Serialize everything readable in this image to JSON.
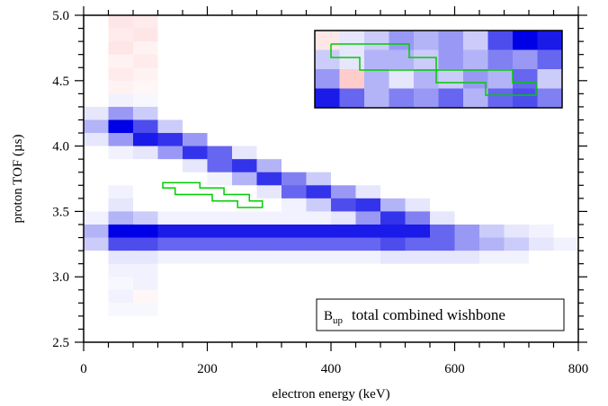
{
  "chart_data": {
    "type": "heatmap",
    "xlabel": "electron energy (keV)",
    "ylabel": "proton TOF (µs)",
    "xlim": [
      0,
      800
    ],
    "ylim": [
      2.5,
      5.0
    ],
    "xticks": [
      0,
      200,
      400,
      600,
      800
    ],
    "yticks": [
      2.5,
      {
        "value": 3,
        "label": "3.0"
      },
      3.5,
      {
        "value": 4,
        "label": "4.0"
      },
      4.5,
      {
        "value": 5,
        "label": "5.0"
      }
    ],
    "xminorticks": [
      40,
      80,
      120,
      160,
      240,
      280,
      320,
      360,
      440,
      480,
      520,
      560,
      640,
      680,
      720,
      760
    ],
    "yminorticks": [
      2.6,
      2.7,
      2.8,
      2.9,
      3.1,
      3.2,
      3.3,
      3.4,
      3.6,
      3.7,
      3.8,
      3.9,
      4.1,
      4.2,
      4.3,
      4.4,
      4.6,
      4.7,
      4.8,
      4.9
    ],
    "colors": {
      "positive": "#0000e6",
      "negative": "#ff0000"
    },
    "vlim": [
      -1,
      1
    ],
    "x_bins": [
      0,
      40,
      80,
      120,
      160,
      200,
      240,
      280,
      320,
      360,
      400,
      440,
      480,
      520,
      560,
      600,
      640,
      680,
      720,
      760,
      800
    ],
    "y_bins": [
      5.0,
      4.9,
      4.8,
      4.7,
      4.6,
      4.5,
      4.4,
      4.3,
      4.2,
      4.1,
      4.0,
      3.9,
      3.8,
      3.7,
      3.6,
      3.5,
      3.4,
      3.3,
      3.2,
      3.1,
      3.0,
      2.9,
      2.8,
      2.7,
      2.6,
      2.5
    ],
    "values": [
      [
        0,
        -0.1,
        -0.08,
        0,
        0,
        0,
        0,
        0,
        0,
        0,
        0,
        0,
        0,
        0,
        0,
        0,
        0,
        0,
        0,
        0
      ],
      [
        0,
        -0.08,
        -0.1,
        0,
        0,
        0,
        0,
        0,
        0,
        0,
        0,
        0,
        0,
        0,
        0,
        0,
        0,
        0,
        0,
        0
      ],
      [
        0,
        -0.1,
        -0.05,
        0,
        0,
        0,
        0,
        0,
        0,
        0,
        0,
        0,
        0,
        0,
        0,
        0,
        0,
        0,
        0,
        0
      ],
      [
        0,
        -0.05,
        -0.08,
        0,
        0,
        0,
        0,
        0,
        0,
        0,
        0,
        0,
        0,
        0,
        0,
        0,
        0,
        0,
        0,
        0
      ],
      [
        0,
        -0.08,
        -0.05,
        0,
        0,
        0,
        0,
        0,
        0,
        0,
        0,
        0,
        0,
        0,
        0,
        0,
        0,
        0,
        0,
        0
      ],
      [
        0,
        -0.05,
        -0.03,
        0,
        0,
        0,
        0,
        0,
        0,
        0,
        0,
        0,
        0,
        0,
        0,
        0,
        0,
        0,
        0,
        0
      ],
      [
        0,
        0.05,
        0.03,
        0,
        0,
        0,
        0,
        0,
        0,
        0,
        0,
        0,
        0,
        0,
        0,
        0,
        0,
        0,
        0,
        0
      ],
      [
        0.1,
        0.4,
        0.2,
        0,
        0,
        0,
        0,
        0,
        0,
        0,
        0,
        0,
        0,
        0,
        0,
        0,
        0,
        0,
        0,
        0
      ],
      [
        0.3,
        1.0,
        0.7,
        0.2,
        0,
        0,
        0,
        0,
        0,
        0,
        0,
        0,
        0,
        0,
        0,
        0,
        0,
        0,
        0,
        0
      ],
      [
        0.1,
        0.4,
        0.9,
        0.8,
        0.4,
        0,
        0,
        0,
        0,
        0,
        0,
        0,
        0,
        0,
        0,
        0,
        0,
        0,
        0,
        0
      ],
      [
        0,
        0.05,
        0.1,
        0.4,
        0.8,
        0.6,
        0.1,
        0,
        0,
        0,
        0,
        0,
        0,
        0,
        0,
        0,
        0,
        0,
        0,
        0
      ],
      [
        0,
        0,
        0,
        0,
        0.1,
        0.6,
        0.8,
        0.3,
        0,
        0,
        0,
        0,
        0,
        0,
        0,
        0,
        0,
        0,
        0,
        0
      ],
      [
        0,
        0,
        0,
        0,
        0,
        0.05,
        0.3,
        0.8,
        0.5,
        0.2,
        0,
        0,
        0,
        0,
        0,
        0,
        0,
        0,
        0,
        0
      ],
      [
        0,
        0.05,
        0,
        0,
        0,
        0,
        0,
        0.1,
        0.6,
        0.8,
        0.4,
        0.1,
        0,
        0,
        0,
        0,
        0,
        0,
        0,
        0
      ],
      [
        0,
        0.1,
        0,
        0,
        0,
        0,
        0,
        0,
        0.05,
        0.2,
        0.7,
        0.8,
        0.3,
        0.1,
        0,
        0,
        0,
        0,
        0,
        0
      ],
      [
        0.05,
        0.3,
        0.2,
        0.05,
        0.05,
        0.05,
        0.05,
        0.05,
        0.05,
        0.05,
        0.1,
        0.4,
        0.8,
        0.5,
        0.1,
        0,
        0,
        0,
        0,
        0
      ],
      [
        0.3,
        1.0,
        1.0,
        0.9,
        0.9,
        0.9,
        0.9,
        0.9,
        0.9,
        0.9,
        0.9,
        0.9,
        0.9,
        0.9,
        0.6,
        0.4,
        0.2,
        0.1,
        0.05,
        0
      ],
      [
        0.2,
        0.7,
        0.7,
        0.6,
        0.6,
        0.6,
        0.6,
        0.6,
        0.6,
        0.6,
        0.6,
        0.6,
        0.7,
        0.6,
        0.6,
        0.4,
        0.3,
        0.2,
        0.1,
        0.05
      ],
      [
        0,
        0.1,
        0.1,
        0.05,
        0.05,
        0.05,
        0.05,
        0.05,
        0.05,
        0.05,
        0.05,
        0.05,
        0.1,
        0.1,
        0.1,
        0.1,
        0.05,
        0.05,
        0,
        0
      ],
      [
        0,
        0.05,
        0.05,
        0,
        0,
        0,
        0,
        0,
        0,
        0,
        0,
        0,
        0,
        0,
        0,
        0,
        0,
        0,
        0,
        0
      ],
      [
        0,
        0.03,
        0.05,
        0,
        0,
        0,
        0,
        0,
        0,
        0,
        0,
        0,
        0,
        0,
        0,
        0,
        0,
        0,
        0,
        0
      ],
      [
        0,
        0.05,
        -0.03,
        0,
        0,
        0,
        0,
        0,
        0,
        0,
        0,
        0,
        0,
        0,
        0,
        0,
        0,
        0,
        0,
        0
      ],
      [
        0,
        0.03,
        0.03,
        0,
        0,
        0,
        0,
        0,
        0,
        0,
        0,
        0,
        0,
        0,
        0,
        0,
        0,
        0,
        0,
        0
      ],
      [
        0,
        0,
        0,
        0,
        0,
        0,
        0,
        0,
        0,
        0,
        0,
        0,
        0,
        0,
        0,
        0,
        0,
        0,
        0,
        0
      ],
      [
        0,
        0,
        0,
        0,
        0,
        0,
        0,
        0,
        0,
        0,
        0,
        0,
        0,
        0,
        0,
        0,
        0,
        0,
        0,
        0
      ]
    ],
    "region": {
      "color": "#00cc00",
      "x": [
        128,
        188,
        188,
        227,
        227,
        268,
        268,
        289,
        289,
        249,
        249,
        208,
        208,
        148,
        148,
        128
      ],
      "y": [
        3.72,
        3.72,
        3.68,
        3.68,
        3.63,
        3.63,
        3.58,
        3.58,
        3.53,
        3.53,
        3.58,
        3.58,
        3.63,
        3.63,
        3.68,
        3.68
      ]
    },
    "inset": {
      "values": [
        [
          -0.1,
          0.1,
          0.2,
          0.4,
          0.3,
          0.4,
          0.2,
          0.7,
          1.0,
          0.9
        ],
        [
          0.2,
          0.1,
          0.3,
          0.3,
          0.2,
          0.4,
          0.3,
          0.5,
          0.4,
          0.6
        ],
        [
          0.4,
          -0.2,
          0.3,
          0.1,
          0.3,
          0.2,
          0.4,
          0.3,
          0.6,
          0.2
        ],
        [
          0.9,
          0.6,
          0.3,
          0.5,
          0.4,
          0.6,
          0.3,
          0.6,
          0.7,
          0.5
        ]
      ]
    },
    "label": "B",
    "label_sub": "up",
    "label_text": "total combined wishbone"
  }
}
